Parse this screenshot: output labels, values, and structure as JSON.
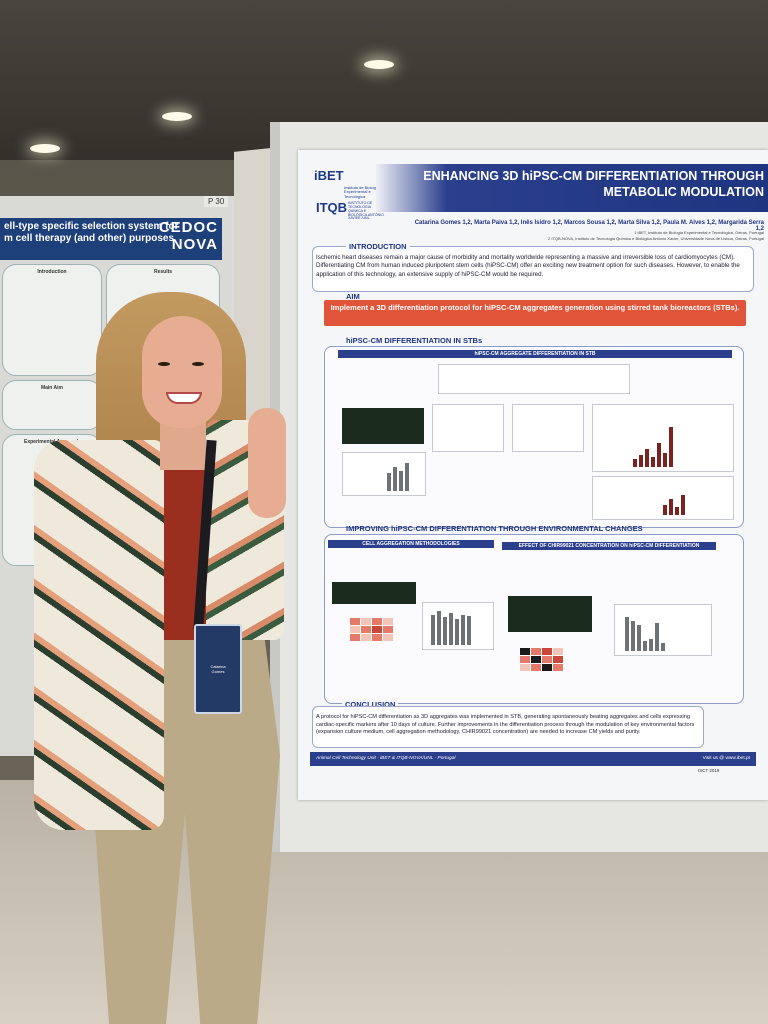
{
  "left_poster": {
    "header_line1": "ell-type specific selection system for",
    "header_line2": "m cell therapy (and other) purposes",
    "logo1": "CEDOC",
    "logo2": "NOVA",
    "box_intro": "Introduction",
    "box_results": "Results",
    "box_main_aim": "Main Aim",
    "box_approach": "Experimental Approach",
    "board_number": "P 30"
  },
  "poster": {
    "logo_ibet": "iBET",
    "logo_ibet_sub": "Instituto de Biologia Experimental e Tecnológica",
    "logo_itqb": "ITQB",
    "logo_itqb_sub": "INSTITUTO DE TECNOLOGIA QUÍMICA E BIOLÓGICA ANTÓNIO XAVIER /UNL",
    "title_line1": "ENHANCING 3D hiPSC-CM DIFFERENTIATION THROUGH",
    "title_line2": "METABOLIC MODULATION",
    "authors": "Catarina Gomes 1,2, Marta Paiva 1,2, Inês Isidro 1,2, Marcos Sousa 1,2, Marta Silva 1,2, Paula M. Alves 1,2, Margarida Serra 1,2",
    "affiliation1": "1 iBET, Instituto de Biologia Experimental e Tecnológica, Oeiras, Portugal",
    "affiliation2": "2 ITQB-NOVA, Instituto de Tecnologia Química e Biológica António Xavier, Universidade Nova de Lisboa, Oeiras, Portugal",
    "intro_title": "INTRODUCTION",
    "intro_text": "Ischemic heart diseases remain a major cause of morbidity and mortality worldwide representing a massive and irreversible loss of cardiomyocytes (CM). Differentiating CM from human induced pluripotent stem cells (hiPSC-CM) offer an exciting new treatment option for such diseases. However, to enable the application of this technology, an extensive supply of hiPSC-CM would be required.",
    "aim_title": "AIM",
    "aim_text": "Implement a 3D differentiation protocol for hiPSC-CM aggregates generation using stirred tank bioreactors (STBs).",
    "stb_title": "hiPSC-CM DIFFERENTIATION IN STBs",
    "stb_bar": "hiPSC-CM AGGREGATE DIFFERENTIATION IN STB",
    "env_title": "IMPROVING hiPSC-CM DIFFERENTIATION THROUGH ENVIRONMENTAL CHANGES",
    "env_bar_left": "CELL AGGREGATION METHODOLOGIES",
    "env_bar_right": "EFFECT OF CHIR99021 CONCENTRATION ON hiPSC-CM DIFFERENTIATION",
    "conclusion_title": "CONCLUSION",
    "conclusion_text": "A protocol for hiPSC-CM differentiation as 3D aggregates was implemented in STB, generating spontaneously beating aggregates and cells expressing cardiac-specific markers after 10 days of culture. Further improvements in the differentiation process through the modulation of key environmental factors (expansion culture medium, cell aggregation methodology, CHIR99021 concentration) are needed to increase CM yields and purity.",
    "footer_left": "Animal Cell Technology Unit · iBET & ITQB-NOVA/UNL · Portugal",
    "footer_right": "Visit us @ www.ibet.pt",
    "footer_event": "ISCT 2019"
  },
  "badge": {
    "line1": "Catarina",
    "line2": "Gomes"
  },
  "colors": {
    "poster_blue": "#1f3580",
    "aim_orange": "#e0553a",
    "bar_red": "#7a2320"
  }
}
